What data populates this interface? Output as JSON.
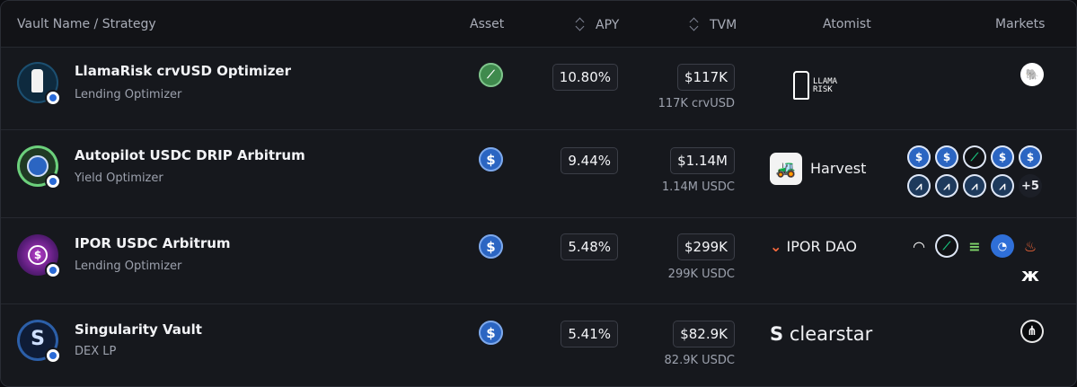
{
  "header": {
    "vault": "Vault Name / Strategy",
    "asset": "Asset",
    "apy": "APY",
    "tvm": "TVM",
    "atomist": "Atomist",
    "markets": "Markets"
  },
  "rows": [
    {
      "name": "LlamaRisk crvUSD Optimizer",
      "strategy": "Lending Optimizer",
      "asset_icon": "crvusd-icon",
      "apy": "10.80%",
      "tvm": "$117K",
      "tvm_sub": "117K crvUSD",
      "atomist": "LLAMA RISK",
      "markets": [
        "llama-market-icon"
      ]
    },
    {
      "name": "Autopilot USDC DRIP Arbitrum",
      "strategy": "Yield Optimizer",
      "asset_icon": "usdc-icon",
      "apy": "9.44%",
      "tvm": "$1.14M",
      "tvm_sub": "1.14M USDC",
      "atomist": "Harvest",
      "markets": [
        "usdc-icon",
        "usdc-icon",
        "silo-icon",
        "usdc-icon",
        "usdc-icon",
        "arbitrum-icon",
        "arbitrum-icon",
        "arbitrum-icon",
        "arbitrum-icon"
      ],
      "markets_more": "+5"
    },
    {
      "name": "IPOR USDC Arbitrum",
      "strategy": "Lending Optimizer",
      "asset_icon": "usdc-icon",
      "apy": "5.48%",
      "tvm": "$299K",
      "tvm_sub": "299K USDC",
      "atomist": "IPOR DAO",
      "markets": [
        "arch-icon",
        "silo-icon",
        "stripes-icon",
        "ring-icon",
        "flame-icon",
        "butterfly-icon"
      ]
    },
    {
      "name": "Singularity Vault",
      "strategy": "DEX LP",
      "asset_icon": "usdc-icon",
      "apy": "5.41%",
      "tvm": "$82.9K",
      "tvm_sub": "82.9K USDC",
      "atomist": "clearstar",
      "markets": [
        "dex-icon"
      ]
    }
  ],
  "glyphs": {
    "usdc": "$",
    "arb": "⩘",
    "silo": "⟋",
    "tractor": "🚜",
    "ipor_chev": "⌄",
    "clearstar_s": "S"
  },
  "colors": {
    "background": "#16181d",
    "header": "#121317",
    "usdc": "#2b65c2",
    "ipor_accent": "#ff6a3d"
  }
}
